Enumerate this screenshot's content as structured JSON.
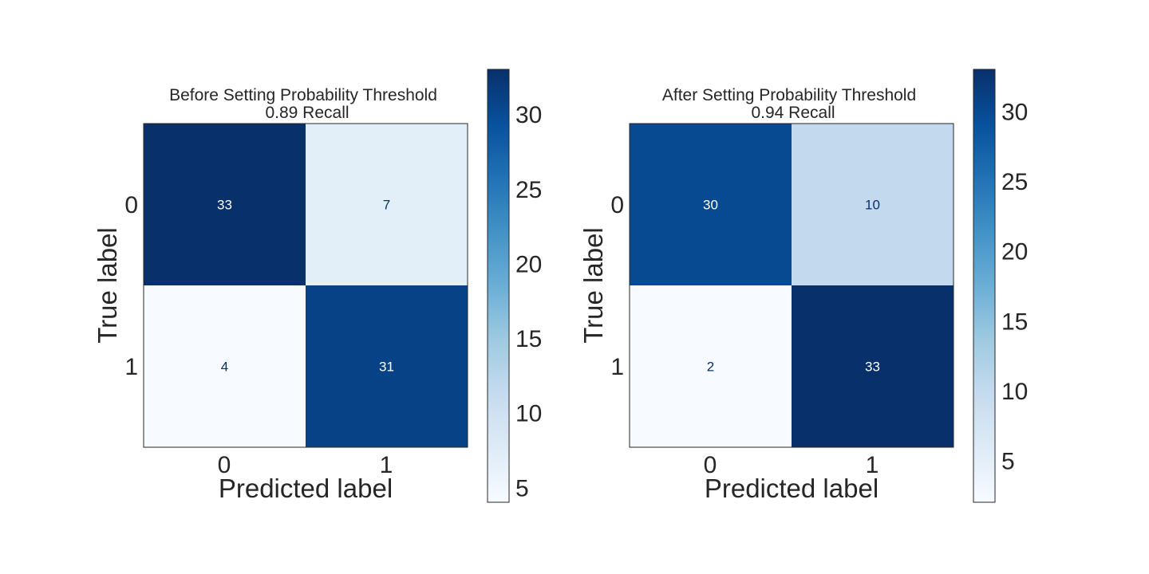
{
  "chart_data": [
    {
      "type": "heatmap",
      "title": "Before Setting Probability Threshold",
      "subtitle": "0.89 Recall",
      "xlabel": "Predicted label",
      "ylabel": "True label",
      "x_categories": [
        "0",
        "1"
      ],
      "y_categories": [
        "0",
        "1"
      ],
      "matrix": [
        [
          33,
          7
        ],
        [
          4,
          31
        ]
      ],
      "colormap": "Blues",
      "colorbar": {
        "range": [
          4,
          33
        ],
        "ticks": [
          5,
          10,
          15,
          20,
          25,
          30
        ]
      },
      "grid": false
    },
    {
      "type": "heatmap",
      "title": "After Setting Probability Threshold",
      "subtitle": "0.94 Recall",
      "xlabel": "Predicted label",
      "ylabel": "True label",
      "x_categories": [
        "0",
        "1"
      ],
      "y_categories": [
        "0",
        "1"
      ],
      "matrix": [
        [
          30,
          10
        ],
        [
          2,
          33
        ]
      ],
      "colormap": "Blues",
      "colorbar": {
        "range": [
          2,
          33
        ],
        "ticks": [
          5,
          10,
          15,
          20,
          25,
          30
        ]
      },
      "grid": false
    }
  ]
}
